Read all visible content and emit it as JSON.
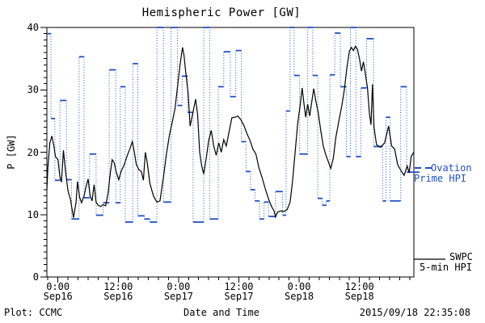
{
  "title": "Hemispheric Power [GW]",
  "footer": {
    "left": "Plot: CCMC",
    "right": "2015/09/18 22:35:08"
  },
  "axes": {
    "x": {
      "label": "Date and Time",
      "major_ticks": [
        {
          "hour": 0,
          "time": "0:00",
          "date": "Sep16"
        },
        {
          "hour": 12,
          "time": "12:00",
          "date": "Sep16"
        },
        {
          "hour": 24,
          "time": "0:00",
          "date": "Sep17"
        },
        {
          "hour": 36,
          "time": "12:00",
          "date": "Sep17"
        },
        {
          "hour": 48,
          "time": "0:00",
          "date": "Sep18"
        },
        {
          "hour": 60,
          "time": "12:00",
          "date": "Sep18"
        }
      ],
      "minor_tick_interval_hours": 2
    },
    "y": {
      "label": "P [GW]",
      "tick_values": [
        0,
        10,
        20,
        30,
        40
      ],
      "minor_tick_interval_gw": 1
    }
  },
  "legend": {
    "ovation": {
      "line1": "Ovation",
      "line2": "Prime HPI",
      "color": "#2050c8",
      "key_style": "dashed"
    },
    "swpc": {
      "line1": "SWPC",
      "line2": "5-min HPI",
      "color": "#000000",
      "key_style": "solid"
    }
  },
  "chart_data": {
    "type": "line",
    "title": "Hemispheric Power [GW]",
    "xlabel": "Date and Time",
    "ylabel": "P [GW]",
    "ylim": [
      0,
      40
    ],
    "xlim_hours_from_sep16_0000": [
      -2.2,
      70.83
    ],
    "grid": false,
    "legend_position": "right-outside",
    "series": [
      {
        "name": "Ovation Prime HPI",
        "style": "step-dotted-verticals-solid-caps",
        "color": "#2050c8",
        "points_t_hours_value_gw": [
          [
            -2.2,
            39.0
          ],
          [
            -1.4,
            25.4
          ],
          [
            -0.6,
            15.5
          ],
          [
            0.4,
            28.3
          ],
          [
            1.7,
            15.6
          ],
          [
            2.7,
            9.3
          ],
          [
            4.2,
            35.3
          ],
          [
            5.2,
            12.7
          ],
          [
            6.3,
            19.7
          ],
          [
            7.6,
            9.9
          ],
          [
            9.0,
            11.9
          ],
          [
            10.2,
            33.2
          ],
          [
            11.5,
            11.9
          ],
          [
            12.4,
            30.5
          ],
          [
            13.4,
            8.8
          ],
          [
            14.9,
            34.2
          ],
          [
            15.9,
            9.8
          ],
          [
            17.2,
            9.3
          ],
          [
            18.3,
            8.8
          ],
          [
            19.7,
            40.0
          ],
          [
            21.0,
            12.0
          ],
          [
            22.5,
            40.0
          ],
          [
            23.8,
            27.5
          ],
          [
            24.7,
            32.2
          ],
          [
            25.8,
            26.4
          ],
          [
            26.9,
            8.8
          ],
          [
            29.0,
            40.0
          ],
          [
            30.2,
            9.3
          ],
          [
            31.9,
            30.5
          ],
          [
            33.0,
            36.1
          ],
          [
            34.3,
            28.9
          ],
          [
            35.4,
            36.3
          ],
          [
            36.5,
            21.7
          ],
          [
            37.4,
            16.9
          ],
          [
            38.3,
            14.0
          ],
          [
            39.2,
            12.2
          ],
          [
            40.1,
            9.3
          ],
          [
            41.0,
            12.0
          ],
          [
            41.9,
            9.7
          ],
          [
            43.3,
            13.7
          ],
          [
            44.7,
            9.9
          ],
          [
            45.4,
            26.6
          ],
          [
            46.2,
            40.0
          ],
          [
            47.0,
            32.3
          ],
          [
            48.1,
            19.7
          ],
          [
            49.7,
            40.0
          ],
          [
            50.7,
            32.3
          ],
          [
            51.7,
            12.6
          ],
          [
            52.6,
            11.5
          ],
          [
            53.4,
            12.2
          ],
          [
            54.1,
            32.4
          ],
          [
            55.1,
            39.1
          ],
          [
            56.2,
            30.5
          ],
          [
            57.4,
            19.3
          ],
          [
            58.2,
            40.0
          ],
          [
            59.3,
            19.3
          ],
          [
            60.3,
            30.3
          ],
          [
            61.4,
            38.2
          ],
          [
            62.8,
            20.9
          ],
          [
            64.6,
            12.2
          ],
          [
            65.3,
            25.6
          ],
          [
            66.1,
            12.2
          ],
          [
            68.2,
            30.5
          ],
          [
            69.4,
            16.8
          ]
        ]
      },
      {
        "name": "SWPC 5-min HPI",
        "style": "solid",
        "color": "#000000",
        "points_t_hours_value_gw": [
          [
            -2.2,
            14.0
          ],
          [
            -2.0,
            17.5
          ],
          [
            -1.6,
            21.5
          ],
          [
            -1.2,
            22.6
          ],
          [
            -0.8,
            21.0
          ],
          [
            -0.5,
            19.3
          ],
          [
            0.0,
            18.8
          ],
          [
            0.4,
            16.0
          ],
          [
            0.7,
            15.2
          ],
          [
            1.1,
            20.3
          ],
          [
            1.5,
            17.0
          ],
          [
            2.0,
            13.8
          ],
          [
            2.5,
            12.4
          ],
          [
            3.1,
            9.5
          ],
          [
            3.6,
            12.0
          ],
          [
            3.9,
            15.3
          ],
          [
            4.3,
            12.8
          ],
          [
            4.7,
            11.9
          ],
          [
            5.2,
            13.0
          ],
          [
            5.6,
            14.5
          ],
          [
            6.0,
            15.7
          ],
          [
            6.4,
            13.0
          ],
          [
            6.8,
            12.2
          ],
          [
            7.2,
            14.8
          ],
          [
            7.6,
            12.0
          ],
          [
            8.0,
            11.5
          ],
          [
            8.5,
            11.3
          ],
          [
            9.0,
            11.6
          ],
          [
            9.5,
            11.4
          ],
          [
            10.0,
            13.5
          ],
          [
            10.4,
            16.5
          ],
          [
            10.8,
            18.8
          ],
          [
            11.2,
            18.3
          ],
          [
            11.6,
            16.8
          ],
          [
            12.1,
            15.6
          ],
          [
            12.6,
            17.0
          ],
          [
            13.2,
            18.0
          ],
          [
            13.8,
            19.5
          ],
          [
            14.3,
            20.5
          ],
          [
            14.8,
            21.7
          ],
          [
            15.2,
            20.0
          ],
          [
            15.6,
            18.0
          ],
          [
            16.1,
            17.2
          ],
          [
            16.6,
            16.9
          ],
          [
            17.0,
            15.5
          ],
          [
            17.4,
            20.0
          ],
          [
            17.8,
            18.2
          ],
          [
            18.3,
            15.0
          ],
          [
            19.0,
            13.0
          ],
          [
            19.7,
            12.0
          ],
          [
            20.3,
            12.2
          ],
          [
            21.0,
            16.0
          ],
          [
            21.6,
            19.8
          ],
          [
            22.2,
            22.8
          ],
          [
            22.8,
            25.0
          ],
          [
            23.3,
            27.0
          ],
          [
            23.8,
            30.5
          ],
          [
            24.3,
            34.0
          ],
          [
            24.8,
            36.8
          ],
          [
            25.1,
            35.5
          ],
          [
            25.4,
            33.0
          ],
          [
            25.9,
            29.5
          ],
          [
            26.3,
            24.2
          ],
          [
            26.9,
            26.5
          ],
          [
            27.4,
            28.5
          ],
          [
            27.8,
            26.0
          ],
          [
            28.2,
            20.0
          ],
          [
            28.6,
            17.8
          ],
          [
            29.0,
            16.5
          ],
          [
            29.5,
            19.0
          ],
          [
            30.0,
            21.9
          ],
          [
            30.5,
            23.5
          ],
          [
            31.0,
            21.0
          ],
          [
            31.5,
            19.5
          ],
          [
            32.0,
            21.5
          ],
          [
            32.5,
            20.0
          ],
          [
            33.0,
            22.0
          ],
          [
            33.5,
            21.0
          ],
          [
            34.0,
            23.0
          ],
          [
            34.6,
            25.5
          ],
          [
            35.2,
            25.6
          ],
          [
            35.8,
            25.8
          ],
          [
            36.4,
            25.2
          ],
          [
            37.0,
            24.3
          ],
          [
            37.6,
            23.0
          ],
          [
            38.2,
            21.9
          ],
          [
            38.8,
            20.5
          ],
          [
            39.4,
            19.7
          ],
          [
            40.0,
            17.5
          ],
          [
            40.6,
            16.0
          ],
          [
            41.2,
            14.3
          ],
          [
            41.9,
            12.5
          ],
          [
            42.5,
            11.3
          ],
          [
            43.0,
            10.6
          ],
          [
            43.3,
            9.6
          ],
          [
            43.7,
            10.4
          ],
          [
            44.3,
            10.6
          ],
          [
            45.0,
            10.5
          ],
          [
            45.6,
            10.8
          ],
          [
            46.2,
            12.0
          ],
          [
            46.7,
            15.5
          ],
          [
            47.2,
            20.0
          ],
          [
            47.7,
            24.5
          ],
          [
            48.2,
            27.5
          ],
          [
            48.6,
            30.3
          ],
          [
            49.0,
            27.5
          ],
          [
            49.3,
            25.6
          ],
          [
            49.7,
            27.7
          ],
          [
            50.1,
            25.8
          ],
          [
            50.5,
            28.0
          ],
          [
            50.9,
            30.2
          ],
          [
            51.3,
            28.3
          ],
          [
            51.8,
            26.3
          ],
          [
            52.3,
            23.5
          ],
          [
            52.8,
            21.0
          ],
          [
            53.3,
            19.6
          ],
          [
            53.8,
            18.5
          ],
          [
            54.3,
            17.4
          ],
          [
            54.8,
            19.0
          ],
          [
            55.3,
            22.4
          ],
          [
            55.9,
            25.0
          ],
          [
            56.5,
            27.5
          ],
          [
            57.0,
            30.0
          ],
          [
            57.5,
            33.5
          ],
          [
            58.0,
            36.2
          ],
          [
            58.4,
            36.8
          ],
          [
            58.8,
            36.3
          ],
          [
            59.2,
            37.0
          ],
          [
            59.6,
            36.5
          ],
          [
            60.0,
            35.0
          ],
          [
            60.4,
            33.0
          ],
          [
            60.8,
            34.5
          ],
          [
            61.2,
            32.5
          ],
          [
            61.6,
            30.3
          ],
          [
            62.0,
            26.1
          ],
          [
            62.3,
            24.4
          ],
          [
            62.6,
            30.9
          ],
          [
            62.9,
            24.0
          ],
          [
            63.4,
            21.2
          ],
          [
            64.2,
            20.8
          ],
          [
            65.0,
            21.5
          ],
          [
            65.8,
            24.2
          ],
          [
            66.4,
            21.0
          ],
          [
            67.0,
            20.5
          ],
          [
            67.6,
            18.0
          ],
          [
            68.3,
            17.0
          ],
          [
            68.9,
            16.3
          ],
          [
            69.5,
            17.8
          ],
          [
            69.9,
            16.7
          ],
          [
            70.3,
            19.3
          ],
          [
            70.8,
            20.0
          ]
        ]
      }
    ]
  }
}
